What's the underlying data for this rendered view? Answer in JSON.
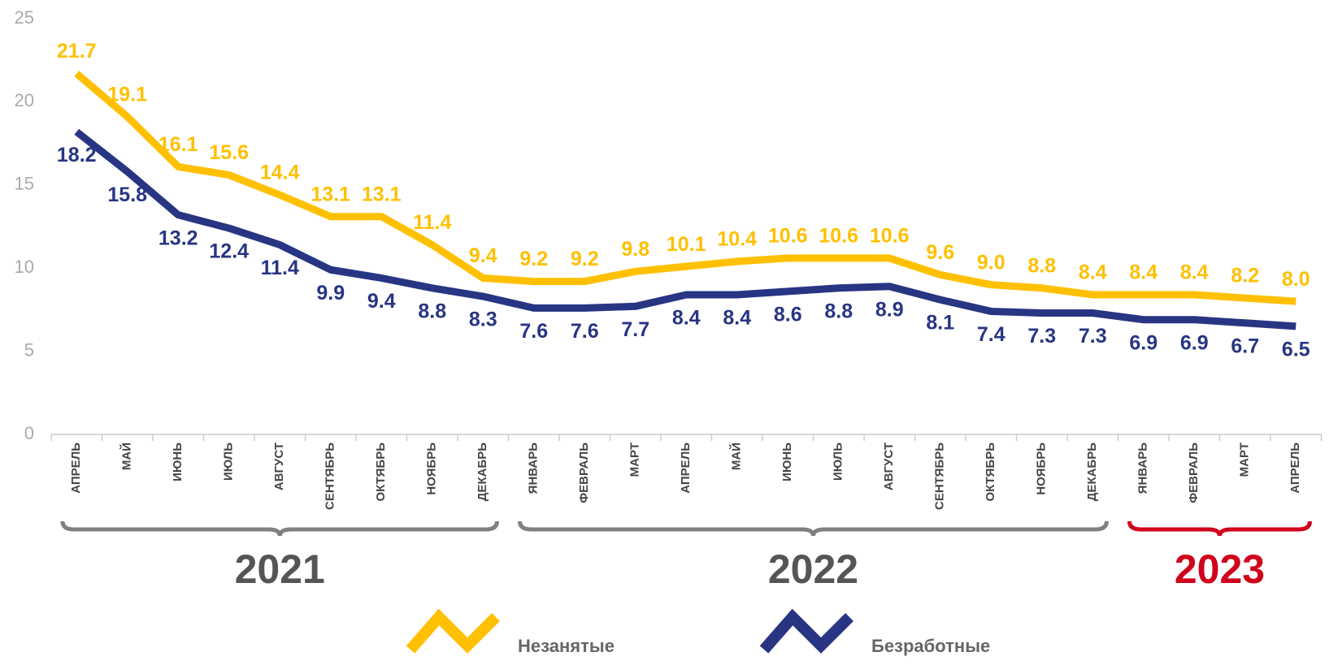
{
  "chart_data": {
    "type": "line",
    "categories": [
      "АПРЕЛЬ",
      "МАЙ",
      "ИЮНЬ",
      "ИЮЛЬ",
      "АВГУСТ",
      "СЕНТЯБРЬ",
      "ОКТЯБРЬ",
      "НОЯБРЬ",
      "ДЕКАБРЬ",
      "ЯНВАРЬ",
      "ФЕВРАЛЬ",
      "МАРТ",
      "АПРЕЛЬ",
      "МАЙ",
      "ИЮНЬ",
      "ИЮЛЬ",
      "АВГУСТ",
      "СЕНТЯБРЬ",
      "ОКТЯБРЬ",
      "НОЯБРЬ",
      "ДЕКАБРЬ",
      "ЯНВАРЬ",
      "ФЕВРАЛЬ",
      "МАРТ",
      "АПРЕЛЬ"
    ],
    "series": [
      {
        "name": "Незанятые",
        "color": "#ffc000",
        "values": [
          21.7,
          19.1,
          16.1,
          15.6,
          14.4,
          13.1,
          13.1,
          11.4,
          9.4,
          9.2,
          9.2,
          9.8,
          10.1,
          10.4,
          10.6,
          10.6,
          10.6,
          9.6,
          9.0,
          8.8,
          8.4,
          8.4,
          8.4,
          8.2,
          8.0
        ],
        "value_labels": [
          "21.7",
          "19.1",
          "16.1",
          "15.6",
          "14.4",
          "13.1",
          "13.1",
          "11.4",
          "9.4",
          "9.2",
          "9.2",
          "9.8",
          "10.1",
          "10.4",
          "10.6",
          "10.6",
          "10.6",
          "9.6",
          "9.0",
          "8.8",
          "8.4",
          "8.4",
          "8.4",
          "8.2",
          "8.0"
        ]
      },
      {
        "name": "Безработные",
        "color": "#283583",
        "values": [
          18.2,
          15.8,
          13.2,
          12.4,
          11.4,
          9.9,
          9.4,
          8.8,
          8.3,
          7.6,
          7.6,
          7.7,
          8.4,
          8.4,
          8.6,
          8.8,
          8.9,
          8.1,
          7.4,
          7.3,
          7.3,
          6.9,
          6.9,
          6.7,
          6.5
        ]
      }
    ],
    "groups": [
      {
        "label": "2021",
        "count": 9,
        "color": "#555555",
        "brace_color": "#808080"
      },
      {
        "label": "2022",
        "count": 12,
        "color": "#555555",
        "brace_color": "#808080"
      },
      {
        "label": "2023",
        "count": 4,
        "color": "#d0021b",
        "brace_color": "#d0021b"
      }
    ],
    "ylim": [
      0,
      25
    ],
    "yticks": [
      0,
      5,
      10,
      15,
      20,
      25
    ],
    "grid": false,
    "legend": "bottom"
  }
}
